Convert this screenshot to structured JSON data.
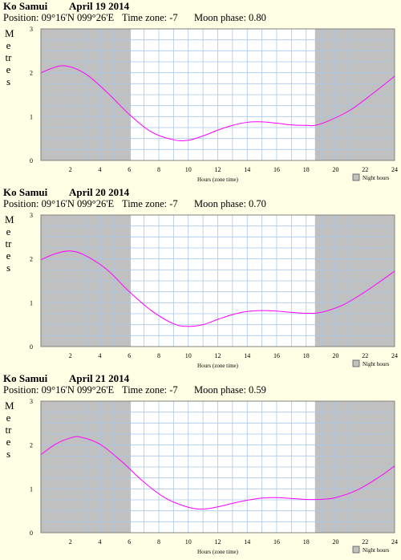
{
  "chart_data": [
    {
      "type": "line",
      "location": "Ko Samui",
      "date": "April 19 2014",
      "position": "Position: 09°16'N 099°26'E",
      "timezone": "Time zone: -7",
      "moon_phase": "Moon phase: 0.80",
      "ylabel": "Metres",
      "xlabel": "Hours (zone time)",
      "legend": "Night hours",
      "xlim": [
        0,
        24
      ],
      "ylim": [
        0,
        3
      ],
      "xticks": [
        2,
        4,
        6,
        8,
        10,
        12,
        14,
        16,
        18,
        20,
        22,
        24
      ],
      "yticks": [
        0,
        1,
        2,
        3
      ],
      "night": [
        [
          0,
          6.1
        ],
        [
          18.6,
          24
        ]
      ],
      "x": [
        0,
        1.5,
        3,
        4.5,
        6,
        7.5,
        9,
        10,
        11,
        12,
        13,
        14,
        15,
        16,
        17,
        18,
        18.6,
        19.5,
        21,
        22.5,
        24
      ],
      "y": [
        2.0,
        2.16,
        1.98,
        1.55,
        1.05,
        0.65,
        0.47,
        0.46,
        0.56,
        0.69,
        0.8,
        0.87,
        0.88,
        0.85,
        0.81,
        0.8,
        0.8,
        0.9,
        1.15,
        1.52,
        1.92
      ]
    },
    {
      "type": "line",
      "location": "Ko Samui",
      "date": "April 20 2014",
      "position": "Position: 09°16'N 099°26'E",
      "timezone": "Time zone: -7",
      "moon_phase": "Moon phase: 0.70",
      "ylabel": "Metres",
      "xlabel": "Hours (zone time)",
      "legend": "Night hours",
      "xlim": [
        0,
        24
      ],
      "ylim": [
        0,
        3
      ],
      "xticks": [
        2,
        4,
        6,
        8,
        10,
        12,
        14,
        16,
        18,
        20,
        22,
        24
      ],
      "yticks": [
        0,
        1,
        2,
        3
      ],
      "night": [
        [
          0,
          6.1
        ],
        [
          18.6,
          24
        ]
      ],
      "x": [
        0,
        1,
        2,
        3,
        4.5,
        6,
        7.5,
        9,
        10,
        11,
        12,
        13,
        14,
        15,
        16,
        17,
        18,
        19,
        20.5,
        22,
        23,
        24
      ],
      "y": [
        1.98,
        2.12,
        2.18,
        2.08,
        1.75,
        1.25,
        0.82,
        0.52,
        0.46,
        0.5,
        0.62,
        0.73,
        0.8,
        0.82,
        0.81,
        0.78,
        0.76,
        0.78,
        0.95,
        1.25,
        1.48,
        1.72
      ]
    },
    {
      "type": "line",
      "location": "Ko Samui",
      "date": "April 21 2014",
      "position": "Position: 09°16'N 099°26'E",
      "timezone": "Time zone: -7",
      "moon_phase": "Moon phase: 0.59",
      "ylabel": "Metres",
      "xlabel": "Hours (zone time)",
      "legend": "Night hours",
      "xlim": [
        0,
        24
      ],
      "ylim": [
        0,
        3
      ],
      "xticks": [
        2,
        4,
        6,
        8,
        10,
        12,
        14,
        16,
        18,
        20,
        22,
        24
      ],
      "yticks": [
        0,
        1,
        2,
        3
      ],
      "night": [
        [
          0,
          6.1
        ],
        [
          18.6,
          24
        ]
      ],
      "x": [
        0,
        1,
        2,
        2.7,
        4,
        5.5,
        7,
        8.5,
        10,
        11,
        12,
        13,
        14,
        15,
        16,
        17,
        18,
        19,
        20,
        21.5,
        23,
        24
      ],
      "y": [
        1.78,
        2.02,
        2.16,
        2.18,
        2.02,
        1.62,
        1.15,
        0.78,
        0.58,
        0.54,
        0.59,
        0.67,
        0.74,
        0.79,
        0.8,
        0.78,
        0.76,
        0.76,
        0.8,
        0.98,
        1.28,
        1.52
      ]
    }
  ]
}
